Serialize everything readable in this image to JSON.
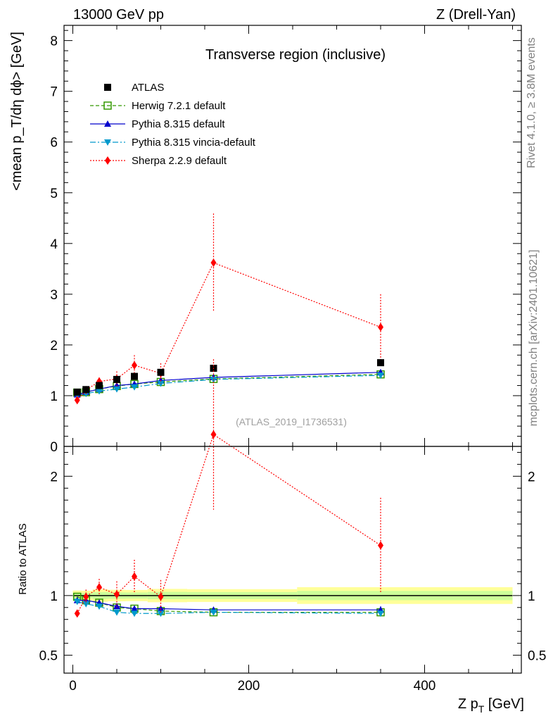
{
  "header": {
    "energy": "13000 GeV pp",
    "process": "Z (Drell-Yan)"
  },
  "side_text": {
    "rivet": "Rivet 4.1.0, ≥ 3.8M events",
    "mcplots": "mcplots.cern.ch [arXiv:2401.10621]"
  },
  "chart_data": {
    "type": "line",
    "title": "Transverse region (inclusive)",
    "reference": "(ATLAS_2019_I1736531)",
    "xlabel": "Z p",
    "xlabel_sub": "T",
    "xlabel_unit": " [GeV]",
    "ylabel": "<mean p_T/dη dϕ> [GeV]",
    "ratio_ylabel": "Ratio to ATLAS",
    "xlim": [
      -10,
      510
    ],
    "ylim": [
      0,
      8.3
    ],
    "ratio_ylim": [
      0.35,
      2.25
    ],
    "x_ticks": [
      {
        "value": 0,
        "label": "0"
      },
      {
        "value": 200,
        "label": "200"
      },
      {
        "value": 400,
        "label": "400"
      }
    ],
    "y_ticks": [
      {
        "value": 0,
        "label": "0"
      },
      {
        "value": 1,
        "label": "1"
      },
      {
        "value": 2,
        "label": "2"
      },
      {
        "value": 3,
        "label": "3"
      },
      {
        "value": 4,
        "label": "4"
      },
      {
        "value": 5,
        "label": "5"
      },
      {
        "value": 6,
        "label": "6"
      },
      {
        "value": 7,
        "label": "7"
      },
      {
        "value": 8,
        "label": "8"
      }
    ],
    "ratio_ticks": [
      {
        "value": 0.5,
        "label": "0.5"
      },
      {
        "value": 1,
        "label": "1"
      },
      {
        "value": 2,
        "label": "2"
      }
    ],
    "x": [
      5,
      15,
      30,
      50,
      70,
      100,
      160,
      350
    ],
    "data": {
      "name": "ATLAS",
      "values": [
        1.07,
        1.12,
        1.2,
        1.32,
        1.38,
        1.46,
        1.54,
        1.65
      ],
      "errors": [
        0.02,
        0.02,
        0.03,
        0.03,
        0.03,
        0.04,
        0.04,
        0.06
      ],
      "color": "#000000"
    },
    "series": [
      {
        "name": "Herwig 7.2.1 default",
        "color": "#339900",
        "dash": "5,3",
        "marker": "open-square",
        "values": [
          1.06,
          1.07,
          1.13,
          1.19,
          1.23,
          1.27,
          1.33,
          1.42
        ],
        "errors": [
          0.01,
          0.01,
          0.01,
          0.01,
          0.02,
          0.02,
          0.02,
          0.04
        ],
        "ratio": [
          0.99,
          0.96,
          0.94,
          0.9,
          0.89,
          0.87,
          0.86,
          0.86
        ]
      },
      {
        "name": "Pythia 8.315 default",
        "color": "#0000cc",
        "dash": "",
        "marker": "triangle-up",
        "values": [
          1.02,
          1.07,
          1.13,
          1.2,
          1.23,
          1.3,
          1.36,
          1.46
        ],
        "errors": [
          0.01,
          0.01,
          0.01,
          0.01,
          0.02,
          0.02,
          0.02,
          0.05
        ],
        "ratio": [
          0.96,
          0.96,
          0.94,
          0.91,
          0.89,
          0.89,
          0.88,
          0.88
        ]
      },
      {
        "name": "Pythia 8.315 vincia-default",
        "color": "#0099cc",
        "dash": "8,3,2,3",
        "marker": "triangle-down",
        "values": [
          1.01,
          1.04,
          1.09,
          1.13,
          1.17,
          1.24,
          1.32,
          1.4
        ],
        "errors": [
          0.01,
          0.01,
          0.01,
          0.01,
          0.02,
          0.02,
          0.02,
          0.04
        ],
        "ratio": [
          0.95,
          0.93,
          0.91,
          0.86,
          0.85,
          0.85,
          0.86,
          0.85
        ]
      },
      {
        "name": "Sherpa 2.2.9 default",
        "color": "#ff0000",
        "dash": "2,2",
        "marker": "diamond",
        "values": [
          0.91,
          1.11,
          1.28,
          1.33,
          1.6,
          1.44,
          3.62,
          2.35
        ],
        "errors": [
          0.04,
          0.06,
          0.08,
          0.15,
          0.2,
          0.2,
          0.97,
          0.65
        ],
        "ratio": [
          0.85,
          0.99,
          1.07,
          1.01,
          1.16,
          0.99,
          2.35,
          1.42
        ],
        "ratio_errors": [
          0.03,
          0.06,
          0.07,
          0.11,
          0.14,
          0.14,
          0.63,
          0.4
        ]
      }
    ],
    "band": {
      "inner_color": "#ccff99",
      "outer_color": "#ffff99"
    }
  }
}
